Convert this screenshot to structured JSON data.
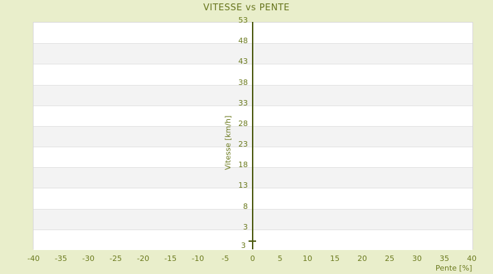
{
  "chart": {
    "title": "VITESSE vs PENTE",
    "y_axis": {
      "label": "Vitesse [km/h]",
      "ticks": [
        53,
        48,
        43,
        38,
        33,
        28,
        23,
        18,
        13,
        8,
        3
      ],
      "bottom_label": "3"
    },
    "x_axis": {
      "label": "Pente [%]",
      "ticks": [
        -40,
        -35,
        -30,
        -25,
        -20,
        -15,
        -10,
        -5,
        0,
        5,
        10,
        15,
        20,
        25,
        30,
        35,
        40
      ]
    },
    "colors": {
      "page_background": "#e9eecb",
      "plot_background": "#ffffff",
      "alt_band": "#f3f3f3",
      "gridline": "#e2e2e2",
      "plot_border": "#d8d8d8",
      "text_olive": "#6b7a1e",
      "title_olive": "#66741c",
      "axis_line": "#4c5a10"
    }
  },
  "chart_data": {
    "type": "scatter",
    "title": "VITESSE vs PENTE",
    "xlabel": "Pente [%]",
    "ylabel": "Vitesse [km/h]",
    "xlim": [
      -40,
      40
    ],
    "ylim": [
      -2,
      53
    ],
    "x_ticks": [
      -40,
      -35,
      -30,
      -25,
      -20,
      -15,
      -10,
      -5,
      0,
      5,
      10,
      15,
      20,
      25,
      30,
      35,
      40
    ],
    "y_ticks": [
      53,
      48,
      43,
      38,
      33,
      28,
      23,
      18,
      13,
      8,
      3
    ],
    "grid": "horizontal-bands",
    "legend": false,
    "series": [
      {
        "name": "Vitesse",
        "points": [
          {
            "x": 0,
            "y": 0,
            "label": "3",
            "marker": "dash"
          }
        ]
      }
    ]
  }
}
